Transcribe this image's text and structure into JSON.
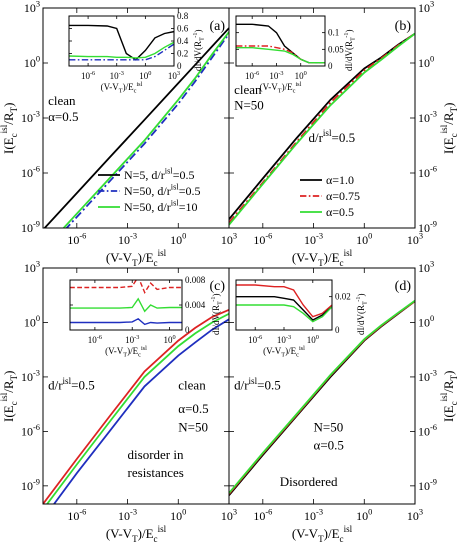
{
  "chart_data": [
    {
      "type": "line",
      "panel": "main",
      "letter": "(a)",
      "xlabel": "(V-V_T)/E_c^isl",
      "ylabel": "I(E_c^isl/R_T)",
      "x_log": true,
      "y_log": true,
      "xlim": [
        1e-08,
        1000
      ],
      "ylim": [
        1e-09,
        1000
      ],
      "x_ticks": [
        {
          "v": 1e-06,
          "label": "10^-6"
        },
        {
          "v": 0.001,
          "label": "10^-3"
        },
        {
          "v": 1,
          "label": "10^0"
        },
        {
          "v": 1000,
          "label": "10^3"
        }
      ],
      "y_ticks": [
        {
          "v": 1e-09,
          "label": "10^-9"
        },
        {
          "v": 1e-06,
          "label": "10^-6"
        },
        {
          "v": 0.001,
          "label": "10^-3"
        },
        {
          "v": 1,
          "label": "10^0"
        },
        {
          "v": 1000,
          "label": "10^3"
        }
      ],
      "annotations": [
        {
          "text": "clean",
          "x": 2e-08,
          "y": 0.005
        },
        {
          "text": "α=0.5",
          "x": 2e-08,
          "y": 0.0007
        }
      ],
      "legend": "bottom-right",
      "series": [
        {
          "name": "N=5, d/r^isl=0.5",
          "color": "#000000",
          "dash": "solid",
          "x": [
            1e-08,
            1e-06,
            0.0001,
            0.01,
            1,
            10,
            100,
            1000
          ],
          "y": [
            8e-10,
            8e-08,
            8e-06,
            0.0008,
            0.08,
            0.8,
            8,
            80
          ]
        },
        {
          "name": "N=50, d/r^isl=0.5",
          "color": "#1f2fbf",
          "dash": "dashdot",
          "x": [
            1e-08,
            1e-06,
            0.0001,
            0.01,
            1,
            10,
            100,
            1000
          ],
          "y": [
            4e-11,
            4e-09,
            4e-07,
            4e-05,
            0.006,
            0.1,
            2,
            40
          ]
        },
        {
          "name": "N=50, d/r^isl=10",
          "color": "#33dd33",
          "dash": "solid",
          "x": [
            1e-08,
            1e-06,
            0.0001,
            0.01,
            1,
            10,
            100,
            1000
          ],
          "y": [
            6e-11,
            6e-09,
            6e-07,
            6e-05,
            0.01,
            0.15,
            3,
            50
          ]
        }
      ]
    },
    {
      "type": "line",
      "panel": "inset",
      "xlabel": "(V-V_T)/E_c^isl",
      "ylabel": "dI/dV(R_T^-1)",
      "x_log": true,
      "y_log": false,
      "xlim": [
        1e-08,
        1000
      ],
      "ylim": [
        0,
        0.8
      ],
      "x_ticks": [
        {
          "v": 1e-06,
          "label": "10^-6"
        },
        {
          "v": 0.001,
          "label": "10^-3"
        },
        {
          "v": 1,
          "label": "10^0"
        },
        {
          "v": 1000,
          "label": "10^3"
        }
      ],
      "y_ticks": [
        {
          "v": 0,
          "label": "0"
        },
        {
          "v": 0.2,
          "label": "0.2"
        },
        {
          "v": 0.4,
          "label": "0.4"
        },
        {
          "v": 0.6,
          "label": "0.6"
        },
        {
          "v": 0.8,
          "label": "0.8"
        }
      ],
      "series": [
        {
          "color": "#000000",
          "dash": "solid",
          "x": [
            1e-08,
            1e-06,
            0.0001,
            0.001,
            0.01,
            0.1,
            1,
            10,
            100,
            1000
          ],
          "y": [
            0.65,
            0.65,
            0.64,
            0.6,
            0.2,
            0.1,
            0.25,
            0.45,
            0.52,
            0.55
          ]
        },
        {
          "color": "#1f2fbf",
          "dash": "dashdot",
          "x": [
            1e-08,
            1e-06,
            0.0001,
            0.01,
            1,
            10,
            100,
            1000
          ],
          "y": [
            0.1,
            0.1,
            0.1,
            0.1,
            0.1,
            0.15,
            0.25,
            0.35
          ]
        },
        {
          "color": "#33dd33",
          "dash": "solid",
          "x": [
            1e-08,
            1e-06,
            0.0001,
            0.001,
            0.01,
            0.1,
            1,
            10,
            100,
            1000
          ],
          "y": [
            0.16,
            0.15,
            0.15,
            0.14,
            0.14,
            0.13,
            0.14,
            0.2,
            0.3,
            0.38
          ]
        }
      ]
    },
    {
      "type": "line",
      "panel": "main",
      "letter": "(b)",
      "xlabel": "(V-V_T)/E_c^isl",
      "ylabel": "I(E_c^isl/R_T)",
      "x_log": true,
      "y_log": true,
      "xlim": [
        1e-08,
        1000
      ],
      "ylim": [
        1e-09,
        1000
      ],
      "x_ticks": [
        {
          "v": 1e-06,
          "label": "10^-6"
        },
        {
          "v": 0.001,
          "label": "10^-3"
        },
        {
          "v": 1,
          "label": "10^0"
        },
        {
          "v": 1000,
          "label": "10^3"
        }
      ],
      "y_ticks": [
        {
          "v": 1e-09,
          "label": "10^-9"
        },
        {
          "v": 1e-06,
          "label": "10^-6"
        },
        {
          "v": 0.001,
          "label": "10^-3"
        },
        {
          "v": 1,
          "label": "10^0"
        },
        {
          "v": 1000,
          "label": "10^3"
        }
      ],
      "annotations": [
        {
          "text": "clean",
          "x": 2e-08,
          "y": 0.02
        },
        {
          "text": "N=50",
          "x": 2e-08,
          "y": 0.003
        },
        {
          "text": "d/r^isl=0.5",
          "x": 0.0005,
          "y": 5e-05
        }
      ],
      "legend": "bottom-right",
      "series": [
        {
          "name": "α=1.0",
          "color": "#000000",
          "dash": "solid",
          "x": [
            1e-08,
            1e-06,
            0.0001,
            0.01,
            1,
            10,
            100,
            1000
          ],
          "y": [
            3e-09,
            5e-07,
            8e-05,
            0.01,
            0.5,
            2,
            10,
            40
          ]
        },
        {
          "name": "α=0.75",
          "color": "#dd2222",
          "dash": "dashdot",
          "x": [
            1e-08,
            1e-06,
            0.0001,
            0.01,
            1,
            10,
            100,
            1000
          ],
          "y": [
            2e-09,
            3e-07,
            5e-05,
            0.007,
            0.4,
            1.8,
            9,
            40
          ]
        },
        {
          "name": "α=0.5",
          "color": "#33dd33",
          "dash": "solid",
          "x": [
            1e-08,
            1e-06,
            0.0001,
            0.01,
            1,
            10,
            100,
            1000
          ],
          "y": [
            1.5e-09,
            2.5e-07,
            4e-05,
            0.005,
            0.3,
            1.5,
            8,
            40
          ]
        }
      ]
    },
    {
      "type": "line",
      "panel": "inset",
      "xlabel": "(V-V_T)/E_c^isl",
      "ylabel": "dI/dV(R_T^-1)",
      "x_log": true,
      "y_log": false,
      "xlim": [
        1e-08,
        1000
      ],
      "ylim": [
        0,
        0.15
      ],
      "x_ticks": [
        {
          "v": 1e-06,
          "label": "10^-6"
        },
        {
          "v": 0.001,
          "label": "10^-3"
        },
        {
          "v": 1,
          "label": "10^0"
        }
      ],
      "y_ticks": [
        {
          "v": 0,
          "label": "0"
        },
        {
          "v": 0.05,
          "label": "0.05"
        },
        {
          "v": 0.1,
          "label": "0.1"
        }
      ],
      "series": [
        {
          "color": "#000000",
          "dash": "solid",
          "x": [
            1e-08,
            1e-06,
            0.0001,
            0.001,
            0.01,
            0.1,
            1,
            10,
            100,
            1000
          ],
          "y": [
            0.125,
            0.125,
            0.12,
            0.1,
            0.06,
            0.04,
            0.02,
            0.01,
            0.01,
            0.01
          ]
        },
        {
          "color": "#dd2222",
          "dash": "dashdot",
          "x": [
            1e-08,
            1e-06,
            0.0001,
            0.01,
            0.1,
            1,
            10,
            100,
            1000
          ],
          "y": [
            0.06,
            0.06,
            0.06,
            0.05,
            0.04,
            0.02,
            0.01,
            0.01,
            0.01
          ]
        },
        {
          "color": "#33dd33",
          "dash": "solid",
          "x": [
            1e-08,
            1e-06,
            0.0001,
            0.01,
            0.1,
            1,
            10,
            100,
            1000
          ],
          "y": [
            0.055,
            0.055,
            0.05,
            0.045,
            0.035,
            0.02,
            0.01,
            0.01,
            0.01
          ]
        }
      ]
    },
    {
      "type": "line",
      "panel": "main",
      "letter": "(c)",
      "xlabel": "(V-V_T)/E_c^isl",
      "ylabel": "I(E_c^isl/R_T)",
      "x_log": true,
      "y_log": true,
      "xlim": [
        1e-08,
        1000
      ],
      "ylim": [
        1e-10,
        1000
      ],
      "x_ticks": [
        {
          "v": 1e-06,
          "label": "10^-6"
        },
        {
          "v": 0.001,
          "label": "10^-3"
        },
        {
          "v": 1,
          "label": "10^0"
        },
        {
          "v": 1000,
          "label": "10^3"
        }
      ],
      "y_ticks": [
        {
          "v": 1e-09,
          "label": "10^-9"
        },
        {
          "v": 1e-06,
          "label": "10^-6"
        },
        {
          "v": 0.001,
          "label": "10^-3"
        },
        {
          "v": 1,
          "label": "10^0"
        },
        {
          "v": 1000,
          "label": "10^3"
        }
      ],
      "annotations": [
        {
          "text": "d/r^isl=0.5",
          "x": 2e-08,
          "y": 0.0002
        },
        {
          "text": "clean",
          "x": 1,
          "y": 0.0002
        },
        {
          "text": "α=0.5",
          "x": 1,
          "y": 1e-05
        },
        {
          "text": "N=50",
          "x": 1,
          "y": 1e-06
        },
        {
          "text": "disorder in",
          "x": 0.001,
          "y": 3e-08
        },
        {
          "text": "resistances",
          "x": 0.001,
          "y": 3e-09
        }
      ],
      "series": [
        {
          "color": "#dd2222",
          "dash": "solid",
          "x": [
            1e-08,
            1e-06,
            0.0001,
            0.01,
            1,
            10,
            100,
            1000
          ],
          "y": [
            1e-10,
            3e-08,
            8e-06,
            0.002,
            0.1,
            0.5,
            2,
            5
          ]
        },
        {
          "color": "#33dd33",
          "dash": "solid",
          "x": [
            1e-08,
            1e-06,
            0.0001,
            0.01,
            1,
            10,
            100,
            1000
          ],
          "y": [
            5e-11,
            1.5e-08,
            4e-06,
            0.001,
            0.05,
            0.25,
            1,
            3
          ]
        },
        {
          "color": "#1f2fbf",
          "dash": "solid",
          "x": [
            1e-08,
            1e-06,
            0.0001,
            0.01,
            1,
            10,
            100,
            1000
          ],
          "y": [
            1.5e-11,
            5e-09,
            1.2e-06,
            0.0003,
            0.015,
            0.08,
            0.4,
            1.5
          ]
        }
      ]
    },
    {
      "type": "line",
      "panel": "inset",
      "xlabel": "(V-V_T)/E_c^isl",
      "ylabel": "dI/dV(R_T^-1)",
      "x_log": true,
      "y_log": false,
      "xlim": [
        1e-08,
        10
      ],
      "ylim": [
        0,
        0.008
      ],
      "x_ticks": [
        {
          "v": 1e-06,
          "label": "10^-6"
        },
        {
          "v": 0.001,
          "label": "10^-3"
        },
        {
          "v": 1,
          "label": "10^0"
        }
      ],
      "y_ticks": [
        {
          "v": 0,
          "label": "0"
        },
        {
          "v": 0.004,
          "label": "0.004"
        },
        {
          "v": 0.008,
          "label": "0.008"
        }
      ],
      "series": [
        {
          "color": "#dd2222",
          "dash": "dashed",
          "x": [
            1e-08,
            1e-06,
            0.0001,
            0.001,
            0.003,
            0.01,
            0.03,
            0.1,
            1,
            10
          ],
          "y": [
            0.0068,
            0.0068,
            0.0068,
            0.007,
            0.0085,
            0.006,
            0.0075,
            0.0065,
            0.0068,
            0.0068
          ]
        },
        {
          "color": "#33dd33",
          "dash": "solid",
          "x": [
            1e-08,
            1e-06,
            0.0001,
            0.001,
            0.003,
            0.01,
            0.03,
            0.1,
            1,
            10
          ],
          "y": [
            0.0035,
            0.0035,
            0.0035,
            0.0036,
            0.005,
            0.003,
            0.004,
            0.0035,
            0.0036,
            0.0036
          ]
        },
        {
          "color": "#1f2fbf",
          "dash": "solid",
          "x": [
            1e-08,
            1e-06,
            0.0001,
            0.001,
            0.003,
            0.01,
            0.03,
            0.1,
            1,
            10
          ],
          "y": [
            0.0012,
            0.0012,
            0.0012,
            0.0013,
            0.0018,
            0.0009,
            0.0012,
            0.0011,
            0.0012,
            0.0012
          ]
        }
      ]
    },
    {
      "type": "line",
      "panel": "main",
      "letter": "(d)",
      "xlabel": "(V-V_T)/E_c^isl",
      "ylabel": "I(E_c^isl/R_T)",
      "x_log": true,
      "y_log": true,
      "xlim": [
        1e-08,
        1000
      ],
      "ylim": [
        1e-10,
        1000
      ],
      "x_ticks": [
        {
          "v": 1e-06,
          "label": "10^-6"
        },
        {
          "v": 0.001,
          "label": "10^-3"
        },
        {
          "v": 1,
          "label": "10^0"
        },
        {
          "v": 1000,
          "label": "10^3"
        }
      ],
      "y_ticks": [
        {
          "v": 1e-09,
          "label": "10^-9"
        },
        {
          "v": 1e-06,
          "label": "10^-6"
        },
        {
          "v": 0.001,
          "label": "10^-3"
        },
        {
          "v": 1,
          "label": "10^0"
        },
        {
          "v": 1000,
          "label": "10^3"
        }
      ],
      "annotations": [
        {
          "text": "d/r^isl=0.5",
          "x": 2e-08,
          "y": 0.0002
        },
        {
          "text": "N=50",
          "x": 0.001,
          "y": 1e-06
        },
        {
          "text": "α=0.5",
          "x": 0.001,
          "y": 1e-07
        },
        {
          "text": "Disordered",
          "x": 1e-05,
          "y": 1e-09
        }
      ],
      "series": [
        {
          "color": "#000000",
          "dash": "solid",
          "x": [
            1e-08,
            1e-06,
            0.0001,
            0.01,
            1,
            10,
            100,
            1000
          ],
          "y": [
            3e-10,
            5e-08,
            7e-06,
            0.001,
            0.1,
            0.6,
            3,
            15
          ]
        },
        {
          "color": "#dd2222",
          "dash": "solid",
          "x": [
            1e-08,
            1e-06,
            0.0001,
            0.01,
            1,
            10,
            100,
            1000
          ],
          "y": [
            3.5e-10,
            6e-08,
            8e-06,
            0.0012,
            0.11,
            0.65,
            3.2,
            15
          ]
        },
        {
          "color": "#33dd33",
          "dash": "solid",
          "x": [
            1e-08,
            1e-06,
            0.0001,
            0.01,
            1,
            10,
            100,
            1000
          ],
          "y": [
            4e-10,
            6.5e-08,
            9e-06,
            0.0013,
            0.12,
            0.7,
            3.4,
            16
          ]
        }
      ]
    },
    {
      "type": "line",
      "panel": "inset",
      "xlabel": "(V-V_T)/E_c^isl",
      "ylabel": "dI/dV(R_T^-1)",
      "x_log": true,
      "y_log": false,
      "xlim": [
        1e-08,
        100
      ],
      "ylim": [
        0,
        0.03
      ],
      "x_ticks": [
        {
          "v": 1e-06,
          "label": "10^-6"
        },
        {
          "v": 0.001,
          "label": "10^-3"
        },
        {
          "v": 1,
          "label": "10^0"
        }
      ],
      "y_ticks": [
        {
          "v": 0,
          "label": "0"
        },
        {
          "v": 0.02,
          "label": "0.02"
        }
      ],
      "series": [
        {
          "color": "#dd2222",
          "dash": "solid",
          "x": [
            1e-08,
            1e-06,
            0.0001,
            0.001,
            0.01,
            0.1,
            1,
            10,
            100
          ],
          "y": [
            0.027,
            0.027,
            0.026,
            0.026,
            0.024,
            0.015,
            0.008,
            0.01,
            0.015
          ]
        },
        {
          "color": "#000000",
          "dash": "solid",
          "x": [
            1e-08,
            1e-06,
            0.0001,
            0.001,
            0.01,
            0.1,
            1,
            10,
            100
          ],
          "y": [
            0.02,
            0.02,
            0.02,
            0.019,
            0.018,
            0.012,
            0.006,
            0.009,
            0.014
          ]
        },
        {
          "color": "#33dd33",
          "dash": "solid",
          "x": [
            1e-08,
            1e-06,
            0.0001,
            0.001,
            0.01,
            0.1,
            1,
            10,
            100
          ],
          "y": [
            0.015,
            0.015,
            0.015,
            0.015,
            0.014,
            0.01,
            0.005,
            0.008,
            0.014
          ]
        }
      ]
    }
  ]
}
